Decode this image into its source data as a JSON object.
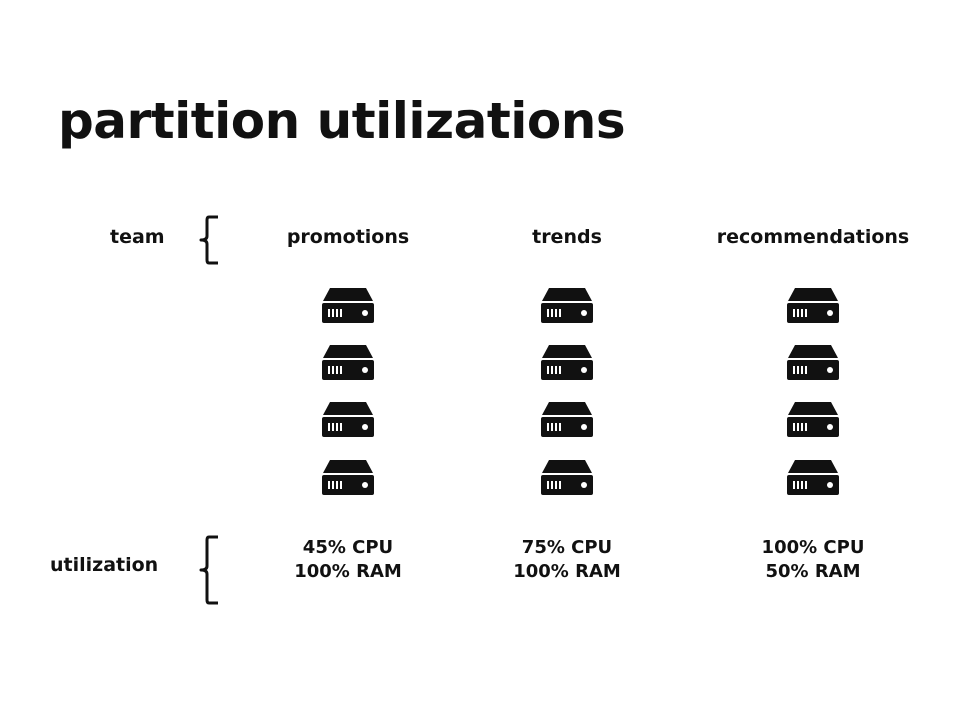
{
  "title": "partition utilizations",
  "row_labels": {
    "team": "team",
    "utilization": "utilization"
  },
  "teams": [
    {
      "name": "promotions",
      "servers": 4,
      "cpu": "45% CPU",
      "ram": "100% RAM"
    },
    {
      "name": "trends",
      "servers": 4,
      "cpu": "75% CPU",
      "ram": "100% RAM"
    },
    {
      "name": "recommendations",
      "servers": 4,
      "cpu": "100% CPU",
      "ram": "50% RAM"
    }
  ],
  "icons": {
    "server": "server-icon",
    "brace": "left-curly-brace-icon"
  },
  "colors": {
    "ink": "#111111",
    "background": "#ffffff"
  }
}
